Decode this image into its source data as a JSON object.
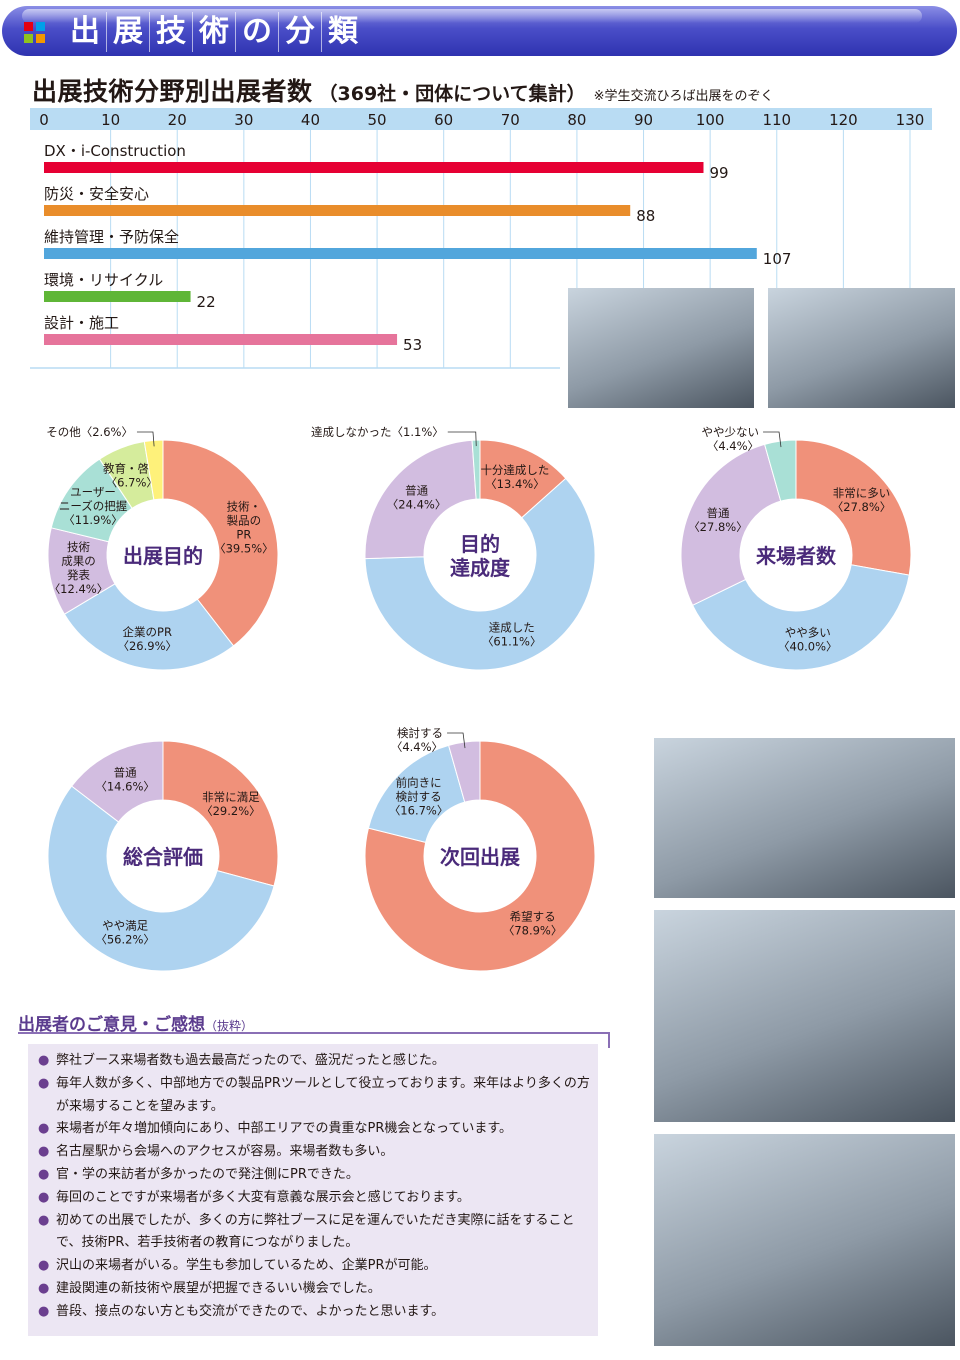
{
  "header": {
    "title_chars": [
      "出",
      "展",
      "技",
      "術",
      "の",
      "分",
      "類"
    ],
    "logo_colors": [
      "#e60012",
      "#00a0e9",
      "#8fc31f",
      "#f39800"
    ]
  },
  "bar_section": {
    "title": "出展技術分野別出展者数",
    "subtitle": "（369社・団体について集計）",
    "note": "※学生交流ひろば出展をのぞく"
  },
  "chart_data": [
    {
      "type": "bar",
      "orientation": "horizontal",
      "categories": [
        "DX・i-Construction",
        "防災・安全安心",
        "維持管理・予防保全",
        "環境・リサイクル",
        "設計・施工"
      ],
      "values": [
        99,
        88,
        107,
        22,
        53
      ],
      "colors": [
        "#e60033",
        "#e98d2b",
        "#52a6dc",
        "#5fb637",
        "#e6749b"
      ],
      "xlim": [
        0,
        130
      ],
      "ticks": [
        0,
        10,
        20,
        30,
        40,
        50,
        60,
        70,
        80,
        90,
        100,
        110,
        120,
        130
      ],
      "grid": true,
      "title": "出展技術分野別出展者数"
    },
    {
      "type": "pie",
      "title": "出展目的",
      "labels": [
        [
          "技術・",
          "製品の",
          "PR",
          "〈39.5%〉"
        ],
        [
          "企業のPR",
          "〈26.9%〉"
        ],
        [
          "技術",
          "成果の",
          "発表",
          "〈12.4%〉"
        ],
        [
          "ユーザー",
          "ニーズの把握",
          "〈11.9%〉"
        ],
        [
          "教育・啓発",
          "〈6.7%〉"
        ],
        [
          "その他〈2.6%〉"
        ]
      ],
      "values": [
        39.5,
        26.9,
        12.4,
        11.9,
        6.7,
        2.6
      ],
      "colors": [
        "#f0917a",
        "#aed3f0",
        "#d2bde0",
        "#a9e0d6",
        "#d5ec9c",
        "#fef17a"
      ]
    },
    {
      "type": "pie",
      "title": "目的達成度",
      "title_lines": [
        "目的",
        "達成度"
      ],
      "labels": [
        [
          "十分達成した",
          "〈13.4%〉"
        ],
        [
          "達成した",
          "〈61.1%〉"
        ],
        [
          "普通",
          "〈24.4%〉"
        ],
        [
          "達成しなかった〈1.1%〉"
        ]
      ],
      "values": [
        13.4,
        61.1,
        24.4,
        1.1
      ],
      "colors": [
        "#f0917a",
        "#aed3f0",
        "#d2bde0",
        "#a9e0d6"
      ]
    },
    {
      "type": "pie",
      "title": "来場者数",
      "labels": [
        [
          "非常に多い",
          "〈27.8%〉"
        ],
        [
          "やや多い",
          "〈40.0%〉"
        ],
        [
          "普通",
          "〈27.8%〉"
        ],
        [
          "やや少ない",
          "〈4.4%〉"
        ]
      ],
      "values": [
        27.8,
        40.0,
        27.8,
        4.4
      ],
      "colors": [
        "#f0917a",
        "#aed3f0",
        "#d2bde0",
        "#a9e0d6"
      ]
    },
    {
      "type": "pie",
      "title": "総合評価",
      "labels": [
        [
          "非常に満足",
          "〈29.2%〉"
        ],
        [
          "やや満足",
          "〈56.2%〉"
        ],
        [
          "普通",
          "〈14.6%〉"
        ]
      ],
      "values": [
        29.2,
        56.2,
        14.6
      ],
      "colors": [
        "#f0917a",
        "#aed3f0",
        "#d2bde0"
      ]
    },
    {
      "type": "pie",
      "title": "次回出展",
      "labels": [
        [
          "希望する",
          "〈78.9%〉"
        ],
        [
          "前向きに",
          "検討する",
          "〈16.7%〉"
        ],
        [
          "検討する",
          "〈4.4%〉"
        ]
      ],
      "values": [
        78.9,
        16.7,
        4.4
      ],
      "colors": [
        "#f0917a",
        "#aed3f0",
        "#d2bde0"
      ]
    }
  ],
  "comments": {
    "title": "出展者のご意見・ご感想",
    "title_suffix": "（抜粋）",
    "items": [
      "弊社ブース来場者数も過去最高だったので、盛況だったと感じた。",
      "毎年人数が多く、中部地方での製品PRツールとして役立っております。来年はより多くの方が来場することを望みます。",
      "来場者が年々増加傾向にあり、中部エリアでの貴重なPR機会となっています。",
      "名古屋駅から会場へのアクセスが容易。来場者数も多い。",
      "官・学の来訪者が多かったので発注側にPRできた。",
      "毎回のことですが来場者が多く大変有意義な展示会と感じております。",
      "初めての出展でしたが、多くの方に弊社ブースに足を運んでいただき実際に話をすることで、技術PR、若手技術者の教育につながりました。",
      "沢山の来場者がいる。学生も参加しているため、企業PRが可能。",
      "建設関連の新技術や展望が把握できるいい機会でした。",
      "普段、接点のない方とも交流ができたので、よかったと思います。"
    ]
  }
}
